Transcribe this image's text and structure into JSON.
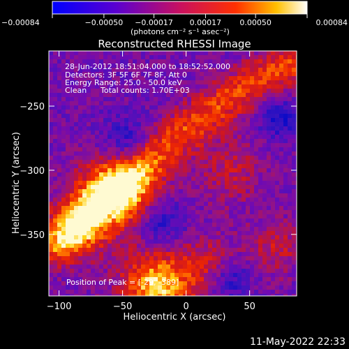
{
  "chart_data": {
    "type": "heatmap",
    "title": "Reconstructed RHESSI Image",
    "xlabel": "Heliocentric X (arcsec)",
    "ylabel": "Heliocentric Y (arcsec)",
    "xlim": [
      -108,
      87
    ],
    "ylim": [
      -398,
      -207
    ],
    "x_ticks": [
      -100,
      -50,
      0,
      50
    ],
    "x_tick_labels": [
      "−100",
      "−50",
      "0",
      "50"
    ],
    "y_ticks": [
      -250,
      -300,
      -350
    ],
    "y_tick_labels": [
      "−250",
      "−300",
      "−350"
    ],
    "colorbar": {
      "range": [
        -0.00084,
        0.00084
      ],
      "ticks": [
        -0.00084,
        -0.0005,
        -0.00017,
        0.00017,
        0.0005,
        0.00084
      ],
      "tick_labels": [
        "−0.00084",
        "−0.00050",
        "−0.00017",
        "0.00017",
        "0.00050",
        "0.00084"
      ],
      "unit_label": "(photons cm⁻² s⁻¹ asec⁻²)"
    },
    "colors": {
      "background": "#000000",
      "scale_low": "#0000ff",
      "scale_mid_low": "#7a00c8",
      "scale_mid": "#d02060",
      "scale_mid_high": "#ff3000",
      "scale_high": "#ffe000",
      "scale_top": "#ffffff"
    },
    "annotations": {
      "time_range": "28-Jun-2012 18:51:04.000 to 18:52:52.000",
      "detectors": "Detectors: 3F 5F 6F 7F 8F, Att 0",
      "energy": "Energy Range: 25.0 - 50.0 keV",
      "clean": "Clean",
      "total_counts": "Total counts: 1.70E+03",
      "peak": "Position of Peak = [-29, -389]"
    },
    "grid": false,
    "legend": "colorbar-top"
  },
  "footer": {
    "timestamp": "11-May-2022 22:33"
  }
}
